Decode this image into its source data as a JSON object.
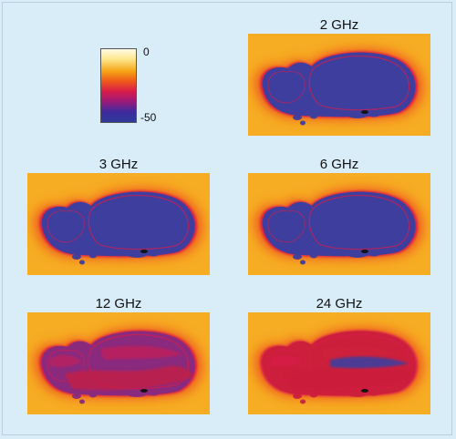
{
  "colorbar": {
    "max_label": "0",
    "min_label": "-50"
  },
  "panels": [
    {
      "label": "2 GHz"
    },
    {
      "label": "3 GHz"
    },
    {
      "label": "6 GHz"
    },
    {
      "label": "12 GHz"
    },
    {
      "label": "24 GHz"
    }
  ],
  "colors": {
    "background": "#d9edf9",
    "ambient": "#f6a516",
    "halo": "#ef5a1a",
    "edge": "#d81c4a",
    "tissue_low": "#3e3e9e",
    "tissue_mid": "#8a2a7e",
    "tissue_high": "#cc1f3c"
  }
}
